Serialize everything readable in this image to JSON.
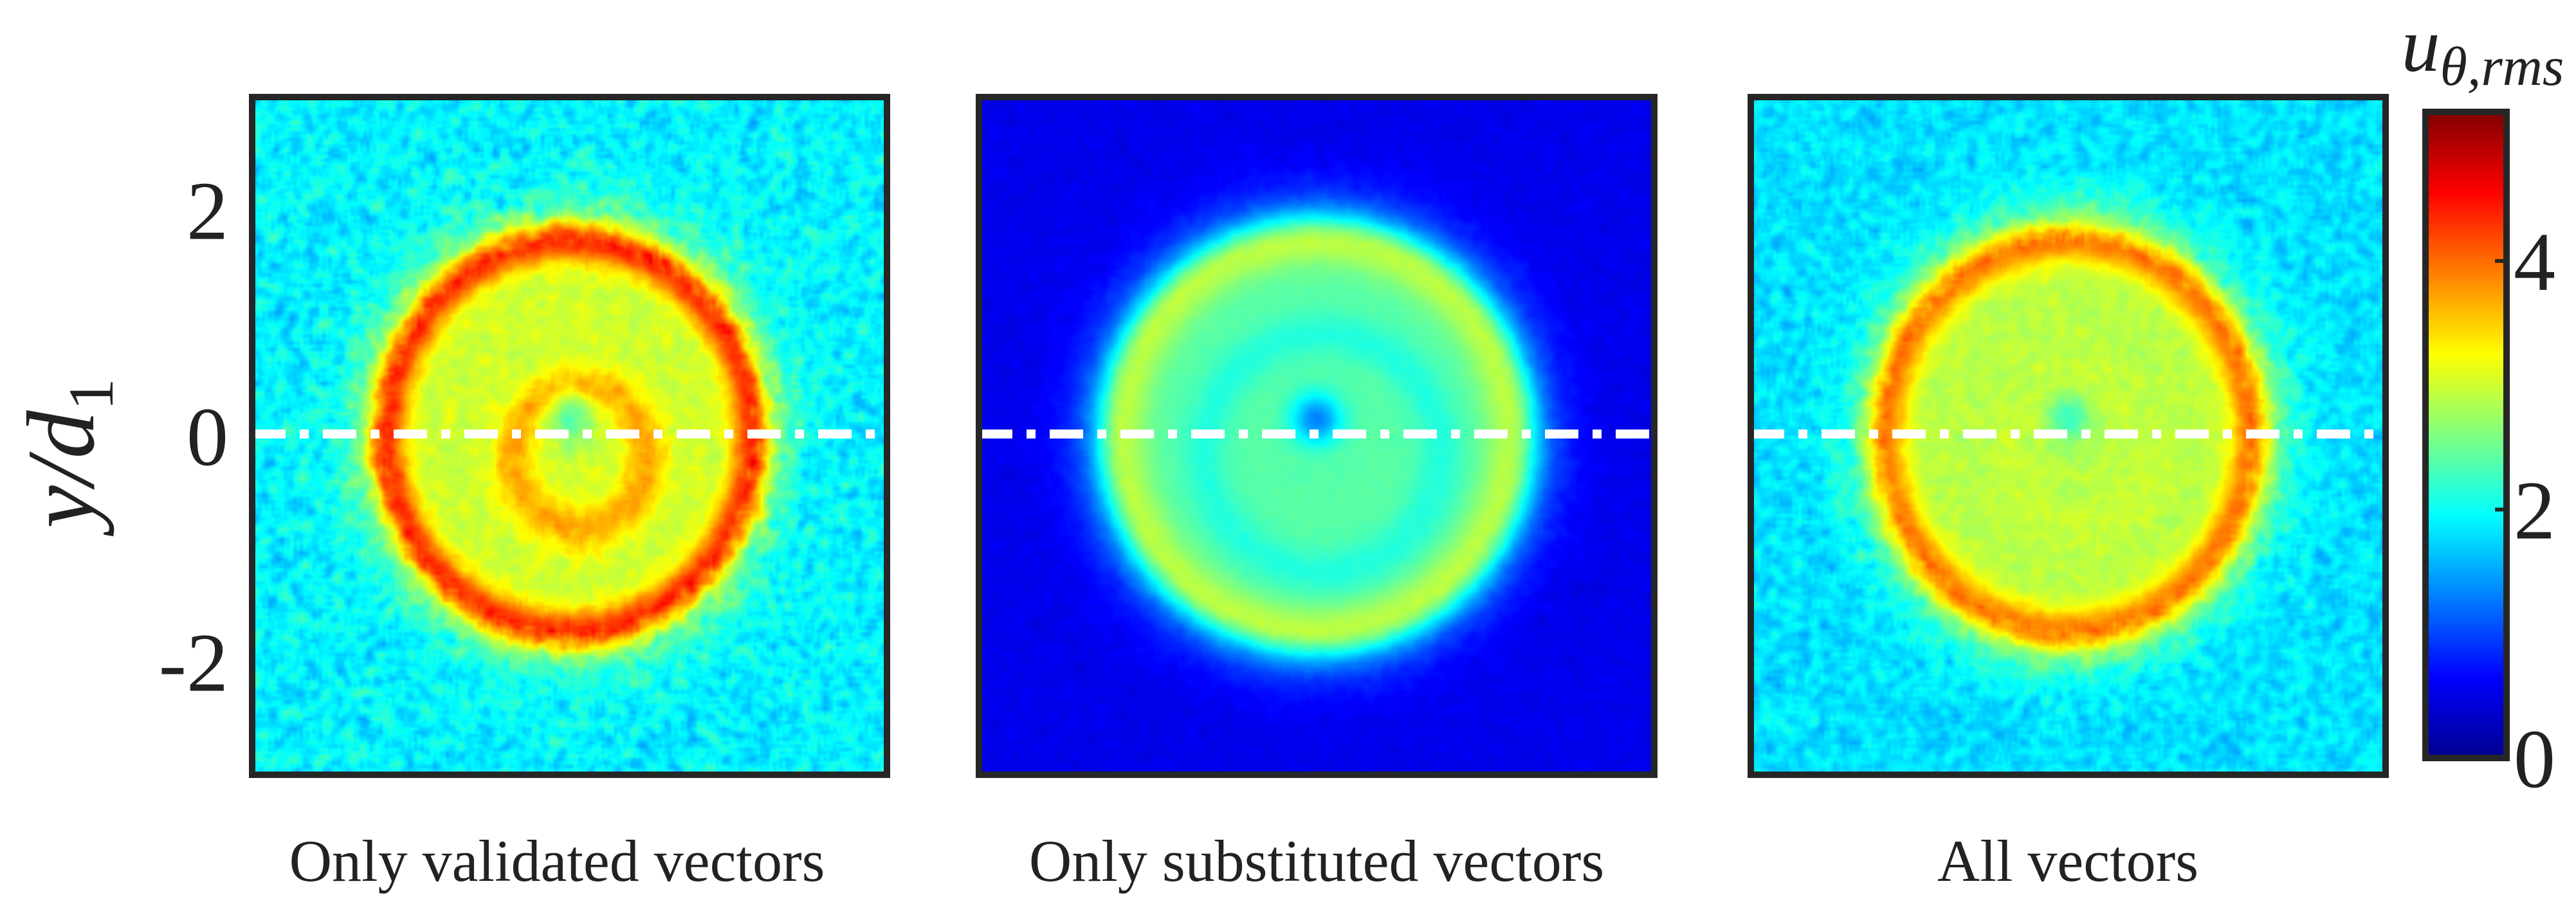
{
  "chart_data": {
    "type": "heatmap",
    "title": "",
    "xlabel": "",
    "ylabel": "y/d",
    "ylabel_subscript": "1",
    "ylim": [
      -3,
      3
    ],
    "xlim": [
      -3,
      3
    ],
    "y_ticks": [
      {
        "value": 2,
        "label": "2"
      },
      {
        "value": 0,
        "label": "0"
      },
      {
        "value": -2,
        "label": "-2"
      }
    ],
    "colorbar": {
      "label_base": "u",
      "label_subscript": "θ,rms",
      "range": [
        0,
        5.2
      ],
      "colormap": "jet",
      "ticks": [
        {
          "value": 0,
          "label": "0"
        },
        {
          "value": 2,
          "label": "2"
        },
        {
          "value": 4,
          "label": "4"
        }
      ]
    },
    "panels": [
      {
        "caption": "Only validated vectors",
        "background_level": 1.9,
        "background_noise": 0.45,
        "outer_ring": {
          "radius": 1.72,
          "width": 0.18,
          "level": 4.3
        },
        "inner_ring": {
          "radius": 0.62,
          "width": 0.2,
          "level": 4.0,
          "center": [
            0.1,
            -0.2
          ]
        },
        "disk_level": 3.0,
        "center_level": 2.4,
        "halo_level": 2.6
      },
      {
        "caption": "Only substituted vectors",
        "background_level": 0.55,
        "background_noise": 0.1,
        "outer_ring": {
          "radius": 1.72,
          "width": 0.22,
          "level": 2.9
        },
        "inner_ring": {
          "radius": 1.05,
          "width": 0.2,
          "level": 2.0,
          "center": [
            0.05,
            -0.15
          ]
        },
        "disk_level": 2.4,
        "center_level": 1.3,
        "halo_level": 1.5
      },
      {
        "caption": "All vectors",
        "background_level": 1.8,
        "background_noise": 0.35,
        "outer_ring": {
          "radius": 1.72,
          "width": 0.19,
          "level": 3.9
        },
        "inner_ring": {
          "radius": 0.62,
          "width": 0.2,
          "level": 3.0,
          "center": [
            0.1,
            -0.2
          ]
        },
        "disk_level": 2.9,
        "center_level": 2.3,
        "halo_level": 2.5
      }
    ],
    "centerline": {
      "y": 0,
      "style": "dash-dot",
      "color": "#ffffff"
    },
    "legend": "none",
    "grid": false
  }
}
